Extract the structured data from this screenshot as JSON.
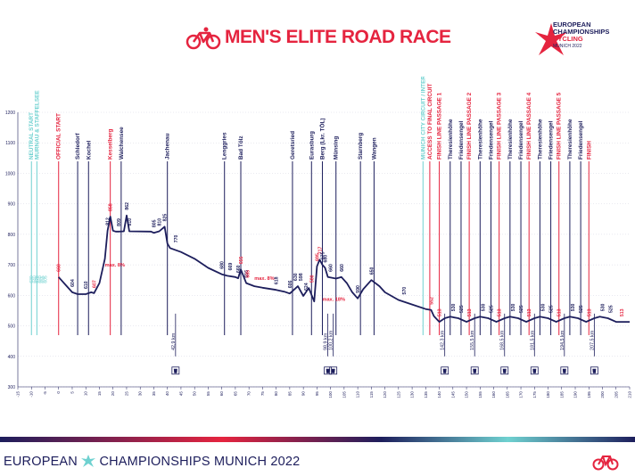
{
  "header": {
    "title": "MEN'S ELITE ROAD RACE",
    "logo_line1": "EUROPEAN",
    "logo_line2": "CHAMPIONSHIPS",
    "logo_line3": "CYCLING",
    "logo_line4": "MUNICH 2022"
  },
  "footer": {
    "brand_left": "EUROPEAN",
    "brand_mid": "CHAMPIONSHIPS",
    "brand_city": "MUNICH 2022"
  },
  "colors": {
    "navy": "#1d1e5c",
    "red": "#e5243f",
    "teal": "#6fd1d0"
  },
  "chart_data": {
    "type": "line",
    "title": "",
    "xlabel": "",
    "ylabel": "",
    "xlim": [
      -15,
      210
    ],
    "ylim": [
      300,
      1200
    ],
    "x_ticks": [
      -15,
      -10,
      -5,
      0,
      5,
      10,
      15,
      20,
      25,
      30,
      35,
      40,
      45,
      50,
      55,
      60,
      65,
      70,
      75,
      80,
      85,
      90,
      95,
      100,
      105,
      110,
      115,
      120,
      125,
      130,
      135,
      140,
      145,
      150,
      155,
      160,
      165,
      170,
      175,
      180,
      185,
      190,
      195,
      200,
      205,
      210
    ],
    "y_ticks": [
      300,
      400,
      500,
      600,
      700,
      800,
      900,
      1000,
      1100,
      1200
    ],
    "profile": [
      [
        0,
        660
      ],
      [
        3,
        630
      ],
      [
        5,
        610
      ],
      [
        7,
        604
      ],
      [
        10,
        604
      ],
      [
        12,
        610
      ],
      [
        13,
        607
      ],
      [
        15,
        640
      ],
      [
        17,
        720
      ],
      [
        18,
        812
      ],
      [
        19,
        858
      ],
      [
        20,
        812
      ],
      [
        21,
        809
      ],
      [
        22,
        809
      ],
      [
        24,
        810
      ],
      [
        25,
        862
      ],
      [
        26,
        810
      ],
      [
        34,
        809
      ],
      [
        35,
        805
      ],
      [
        37,
        810
      ],
      [
        39,
        825
      ],
      [
        40,
        770
      ],
      [
        41,
        755
      ],
      [
        45,
        742
      ],
      [
        50,
        720
      ],
      [
        55,
        690
      ],
      [
        60,
        669
      ],
      [
        62,
        664
      ],
      [
        65,
        660
      ],
      [
        66,
        656
      ],
      [
        67,
        685
      ],
      [
        69,
        640
      ],
      [
        72,
        630
      ],
      [
        75,
        625
      ],
      [
        80,
        618
      ],
      [
        83,
        612
      ],
      [
        85,
        606
      ],
      [
        88,
        630
      ],
      [
        90,
        598
      ],
      [
        92,
        624
      ],
      [
        94,
        580
      ],
      [
        95,
        695
      ],
      [
        96,
        717
      ],
      [
        97,
        700
      ],
      [
        98,
        690
      ],
      [
        99,
        660
      ],
      [
        102,
        655
      ],
      [
        104,
        660
      ],
      [
        106,
        640
      ],
      [
        108,
        610
      ],
      [
        110,
        590
      ],
      [
        112,
        620
      ],
      [
        115,
        650
      ],
      [
        118,
        630
      ],
      [
        120,
        610
      ],
      [
        125,
        585
      ],
      [
        130,
        570
      ],
      [
        135,
        555
      ],
      [
        137,
        552
      ],
      [
        138,
        532
      ],
      [
        140,
        513
      ],
      [
        142,
        525
      ],
      [
        144,
        530
      ],
      [
        147,
        525
      ],
      [
        150,
        513
      ],
      [
        153,
        525
      ],
      [
        155,
        530
      ],
      [
        158,
        525
      ],
      [
        161,
        513
      ],
      [
        164,
        525
      ],
      [
        166,
        530
      ],
      [
        169,
        525
      ],
      [
        172,
        513
      ],
      [
        175,
        525
      ],
      [
        177,
        530
      ],
      [
        180,
        525
      ],
      [
        183,
        513
      ],
      [
        186,
        525
      ],
      [
        188,
        530
      ],
      [
        191,
        525
      ],
      [
        194,
        513
      ],
      [
        197,
        525
      ],
      [
        199,
        530
      ],
      [
        202,
        525
      ],
      [
        205,
        513
      ],
      [
        210,
        513
      ]
    ],
    "elevation_labels": [
      {
        "x": 0,
        "text": "660",
        "color": "red"
      },
      {
        "x": 5,
        "text": "604",
        "color": "navy"
      },
      {
        "x": 10,
        "text": "610",
        "color": "navy"
      },
      {
        "x": 13,
        "text": "607",
        "color": "red"
      },
      {
        "x": 18,
        "text": "812",
        "color": "navy"
      },
      {
        "x": 19,
        "text": "858",
        "color": "red"
      },
      {
        "x": 22,
        "text": "809",
        "color": "navy"
      },
      {
        "x": 25,
        "text": "862",
        "color": "navy"
      },
      {
        "x": 26,
        "text": "810",
        "color": "navy"
      },
      {
        "x": 35,
        "text": "805",
        "color": "navy"
      },
      {
        "x": 37,
        "text": "810",
        "color": "navy"
      },
      {
        "x": 39,
        "text": "825",
        "color": "navy"
      },
      {
        "x": 43,
        "text": "770",
        "color": "navy"
      },
      {
        "x": 60,
        "text": "680",
        "color": "navy"
      },
      {
        "x": 63,
        "text": "669",
        "color": "navy"
      },
      {
        "x": 66,
        "text": "660",
        "color": "navy"
      },
      {
        "x": 67,
        "text": "655",
        "color": "red"
      },
      {
        "x": 69,
        "text": "656",
        "color": "navy"
      },
      {
        "x": 69.5,
        "text": "685",
        "color": "red"
      },
      {
        "x": 80,
        "text": "618",
        "color": "navy"
      },
      {
        "x": 85,
        "text": "606",
        "color": "navy"
      },
      {
        "x": 87,
        "text": "630",
        "color": "navy"
      },
      {
        "x": 89,
        "text": "598",
        "color": "navy"
      },
      {
        "x": 91,
        "text": "624",
        "color": "navy"
      },
      {
        "x": 93,
        "text": "580",
        "color": "red"
      },
      {
        "x": 95,
        "text": "695",
        "color": "red"
      },
      {
        "x": 96,
        "text": "717",
        "color": "red"
      },
      {
        "x": 97,
        "text": "675",
        "color": "navy"
      },
      {
        "x": 98,
        "text": "680",
        "color": "navy"
      },
      {
        "x": 100,
        "text": "660",
        "color": "navy"
      },
      {
        "x": 104,
        "text": "660",
        "color": "navy"
      },
      {
        "x": 110,
        "text": "590",
        "color": "navy"
      },
      {
        "x": 115,
        "text": "650",
        "color": "navy"
      },
      {
        "x": 127,
        "text": "570",
        "color": "navy"
      },
      {
        "x": 137,
        "text": "552",
        "color": "red"
      },
      {
        "x": 140,
        "text": "513",
        "color": "red"
      },
      {
        "x": 145,
        "text": "530",
        "color": "navy"
      },
      {
        "x": 148,
        "text": "525",
        "color": "navy"
      },
      {
        "x": 151,
        "text": "513",
        "color": "red"
      },
      {
        "x": 156,
        "text": "530",
        "color": "navy"
      },
      {
        "x": 159,
        "text": "525",
        "color": "navy"
      },
      {
        "x": 162,
        "text": "513",
        "color": "red"
      },
      {
        "x": 167,
        "text": "530",
        "color": "navy"
      },
      {
        "x": 170,
        "text": "525",
        "color": "navy"
      },
      {
        "x": 173,
        "text": "513",
        "color": "red"
      },
      {
        "x": 178,
        "text": "530",
        "color": "navy"
      },
      {
        "x": 181,
        "text": "525",
        "color": "navy"
      },
      {
        "x": 184,
        "text": "513",
        "color": "red"
      },
      {
        "x": 189,
        "text": "530",
        "color": "navy"
      },
      {
        "x": 192,
        "text": "525",
        "color": "navy"
      },
      {
        "x": 195,
        "text": "513",
        "color": "red"
      },
      {
        "x": 200,
        "text": "530",
        "color": "navy"
      },
      {
        "x": 203,
        "text": "525",
        "color": "navy"
      },
      {
        "x": 207,
        "text": "513",
        "color": "red"
      }
    ],
    "places": [
      {
        "x": -10,
        "label": "NEUTRAL START",
        "color": "teal"
      },
      {
        "x": -8,
        "label": "MURNAU & STAFFELSEE",
        "color": "teal"
      },
      {
        "x": 0,
        "label": "OFFICIAL START",
        "color": "red"
      },
      {
        "x": 7,
        "label": "Schledorf",
        "color": "navy"
      },
      {
        "x": 11,
        "label": "Kochel",
        "color": "navy"
      },
      {
        "x": 19,
        "label": "Kesselberg",
        "color": "red"
      },
      {
        "x": 23,
        "label": "Walchensee",
        "color": "navy"
      },
      {
        "x": 40,
        "label": "Jachenau",
        "color": "navy"
      },
      {
        "x": 61,
        "label": "Lenggries",
        "color": "navy"
      },
      {
        "x": 67,
        "label": "Bad Tölz",
        "color": "navy"
      },
      {
        "x": 86,
        "label": "Geretsried",
        "color": "navy"
      },
      {
        "x": 93,
        "label": "Eurasburg",
        "color": "navy"
      },
      {
        "x": 97,
        "label": "Berg (Lkr. TÖL)",
        "color": "navy"
      },
      {
        "x": 102,
        "label": "Münsing",
        "color": "navy"
      },
      {
        "x": 111,
        "label": "Starnberg",
        "color": "navy"
      },
      {
        "x": 116,
        "label": "Wangen",
        "color": "navy"
      },
      {
        "x": 134,
        "label": "MUNICH CITY CIRCUIT / INTERSECTION",
        "color": "teal"
      },
      {
        "x": 136.5,
        "label": "ACCESS TO FINAL CIRCUIT",
        "color": "red"
      },
      {
        "x": 140,
        "label": "FINISH LINE PASSAGE 1",
        "color": "red"
      },
      {
        "x": 144,
        "label": "Theresienhöhe",
        "color": "navy"
      },
      {
        "x": 148,
        "label": "Friedensengel",
        "color": "navy"
      },
      {
        "x": 151,
        "label": "FINISH LINE PASSAGE 2",
        "color": "red"
      },
      {
        "x": 155,
        "label": "Theresienhöhe",
        "color": "navy"
      },
      {
        "x": 159,
        "label": "Friedensengel",
        "color": "navy"
      },
      {
        "x": 162,
        "label": "FINISH LINE PASSAGE 3",
        "color": "red"
      },
      {
        "x": 166,
        "label": "Theresienhöhe",
        "color": "navy"
      },
      {
        "x": 170,
        "label": "Friedensengel",
        "color": "navy"
      },
      {
        "x": 173,
        "label": "FINISH LINE PASSAGE 4",
        "color": "red"
      },
      {
        "x": 177,
        "label": "Theresienhöhe",
        "color": "navy"
      },
      {
        "x": 181,
        "label": "Friedensengel",
        "color": "navy"
      },
      {
        "x": 184,
        "label": "FINISH LINE PASSAGE 5",
        "color": "red"
      },
      {
        "x": 188,
        "label": "Theresienhöhe",
        "color": "navy"
      },
      {
        "x": 192,
        "label": "Friedensengel",
        "color": "navy"
      },
      {
        "x": 195,
        "label": "FINISH",
        "color": "red"
      }
    ],
    "teal_elevations": [
      {
        "x": -10,
        "text": "630"
      },
      {
        "x": -9,
        "text": "640"
      },
      {
        "x": -8,
        "text": "670"
      },
      {
        "x": -7,
        "text": "680"
      },
      {
        "x": -6,
        "text": "655"
      },
      {
        "x": -5,
        "text": "605"
      }
    ],
    "annotations": [
      {
        "x": 17,
        "y": 695,
        "text": "max. 8%"
      },
      {
        "x": 72,
        "y": 650,
        "text": "max. 8%"
      },
      {
        "x": 97,
        "y": 582,
        "text": "max. 18%"
      }
    ],
    "km_markers": [
      {
        "x": 43,
        "text": "42,9 km"
      },
      {
        "x": 99,
        "text": "98,9 km"
      },
      {
        "x": 101,
        "text": "100,2 km"
      },
      {
        "x": 142,
        "text": "142,3 km"
      },
      {
        "x": 153,
        "text": "155,5 km"
      },
      {
        "x": 164,
        "text": "168,5 km"
      },
      {
        "x": 175,
        "text": "181,5 km"
      },
      {
        "x": 186,
        "text": "194,5 km"
      },
      {
        "x": 197,
        "text": "207,5 km"
      }
    ]
  }
}
